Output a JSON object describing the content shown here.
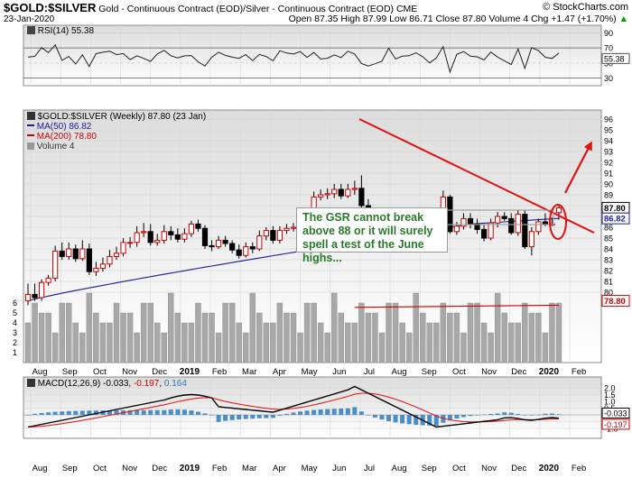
{
  "header": {
    "symbol": "$GOLD:$SILVER",
    "description": "Gold - Continuous Contract (EOD)/Silver - Continuous Contract (EOD) CME",
    "watermark": "© StockCharts.com",
    "date": "23-Jan-2020",
    "quote": "Open 87.35  High 87.99  Low 86.71  Close 87.80  Volume 4  Chg +1.47 (+1.70%)",
    "quote_arrow": "▲"
  },
  "rsi_panel": {
    "label": "RSI(14) 55.38",
    "ticks": [
      "90",
      "70",
      "50",
      "30"
    ],
    "value_tag": "55.38"
  },
  "price_panel": {
    "legend_title": "$GOLD:$SILVER (Weekly) 87.80 (23 Jan)",
    "legend_ma50": "MA(50) 86.82",
    "legend_ma200": "MA(200) 78.80",
    "legend_volume": "Volume 4",
    "ticks": [
      "96",
      "95",
      "94",
      "93",
      "92",
      "91",
      "90",
      "89",
      "88",
      "87",
      "86",
      "85",
      "84",
      "83",
      "82",
      "81",
      "80"
    ],
    "volume_ticks": [
      "6",
      "5",
      "4",
      "3",
      "2",
      "1"
    ],
    "tag_close": "87.80",
    "tag_ma50": "86.82",
    "tag_ma200": "78.80",
    "annotation": "The GSR cannot break above 88 or it will surely spell a test of the June highs..."
  },
  "macd_panel": {
    "label_name": "MACD(12,26,9)",
    "label_macd": "-0.033",
    "label_signal": "-0.197",
    "label_hist": "0.164",
    "ticks": [
      "2.0",
      "1.5",
      "1.0",
      "0.5",
      "0.0",
      "-0.5",
      "-1.0"
    ],
    "tag_macd": "-0.033",
    "tag_signal": "-0.197"
  },
  "x_axis": {
    "labels": [
      "Aug",
      "Sep",
      "Oct",
      "Nov",
      "Dec",
      "2019",
      "Feb",
      "Mar",
      "Apr",
      "May",
      "Jun",
      "Jul",
      "Aug",
      "Sep",
      "Oct",
      "Nov",
      "Dec",
      "2020",
      "Feb"
    ]
  },
  "colors": {
    "ma50": "#1a1a9a",
    "ma200": "#cc0000",
    "trendline": "#e01010",
    "panel_top": "#dcdcdc",
    "panel_bottom": "#ffffff",
    "volume_bar": "#9a9a9a",
    "macd_hist": "#4a8ec8"
  },
  "chart_data": {
    "type": "candlestick",
    "title": "$GOLD:$SILVER (Weekly) 87.80 (23 Jan)",
    "ylim": [
      79,
      97
    ],
    "weeks": [
      "2018-07-27",
      "2018-08-03",
      "2018-08-10",
      "2018-08-17",
      "2018-08-24",
      "2018-08-31",
      "2018-09-07",
      "2018-09-14",
      "2018-09-21",
      "2018-09-28",
      "2018-10-05",
      "2018-10-12",
      "2018-10-19",
      "2018-10-26",
      "2018-11-02",
      "2018-11-09",
      "2018-11-16",
      "2018-11-23",
      "2018-11-30",
      "2018-12-07",
      "2018-12-14",
      "2018-12-21",
      "2018-12-28",
      "2019-01-04",
      "2019-01-11",
      "2019-01-18",
      "2019-01-25",
      "2019-02-01",
      "2019-02-08",
      "2019-02-15",
      "2019-02-22",
      "2019-03-01",
      "2019-03-08",
      "2019-03-15",
      "2019-03-22",
      "2019-03-29",
      "2019-04-05",
      "2019-04-12",
      "2019-04-19",
      "2019-04-26",
      "2019-05-03",
      "2019-05-10",
      "2019-05-17",
      "2019-05-24",
      "2019-05-31",
      "2019-06-07",
      "2019-06-14",
      "2019-06-21",
      "2019-06-28",
      "2019-07-05",
      "2019-07-12",
      "2019-07-19",
      "2019-07-26",
      "2019-08-02",
      "2019-08-09",
      "2019-08-16",
      "2019-08-23",
      "2019-08-30",
      "2019-09-06",
      "2019-09-13",
      "2019-09-20",
      "2019-09-27",
      "2019-10-04",
      "2019-10-11",
      "2019-10-18",
      "2019-10-25",
      "2019-11-01",
      "2019-11-08",
      "2019-11-15",
      "2019-11-22",
      "2019-11-29",
      "2019-12-06",
      "2019-12-13",
      "2019-12-20",
      "2019-12-27",
      "2020-01-03",
      "2020-01-10",
      "2020-01-17",
      "2020-01-23"
    ],
    "open": [
      79.2,
      79.8,
      79.5,
      80.9,
      81.3,
      83.8,
      83.3,
      84.0,
      83.1,
      84.0,
      81.9,
      82.2,
      82.6,
      83.3,
      83.6,
      84.6,
      84.6,
      85.5,
      85.6,
      84.6,
      84.8,
      85.6,
      85.3,
      84.9,
      85.4,
      86.3,
      85.9,
      84.3,
      84.2,
      84.8,
      84.5,
      83.9,
      83.4,
      84.2,
      84.0,
      85.2,
      85.7,
      84.8,
      85.7,
      85.9,
      86.0,
      87.0,
      87.2,
      88.8,
      89.0,
      89.1,
      89.5,
      88.9,
      89.5,
      89.6,
      88.0,
      86.3,
      85.4,
      85.1,
      87.4,
      86.9,
      86.6,
      86.2,
      86.6,
      86.5,
      85.5,
      85.9,
      88.8,
      85.6,
      86.1,
      86.8,
      86.3,
      85.8,
      85.0,
      86.4,
      87.0,
      86.8,
      85.5,
      87.2,
      84.2,
      85.6,
      86.5,
      86.3,
      87.35
    ],
    "close": [
      79.8,
      79.5,
      80.9,
      81.3,
      83.8,
      83.3,
      84.0,
      83.1,
      84.0,
      81.9,
      82.2,
      82.6,
      83.3,
      83.6,
      84.6,
      84.6,
      85.5,
      85.6,
      84.6,
      84.8,
      85.6,
      85.3,
      84.9,
      85.4,
      86.3,
      85.9,
      84.3,
      84.2,
      84.8,
      84.5,
      83.9,
      83.4,
      84.2,
      84.0,
      85.2,
      85.7,
      84.8,
      85.7,
      85.9,
      86.0,
      87.0,
      87.2,
      88.8,
      89.0,
      89.1,
      89.5,
      88.9,
      89.5,
      89.6,
      88.0,
      86.3,
      85.4,
      85.1,
      87.4,
      86.9,
      86.6,
      86.2,
      86.6,
      86.5,
      85.5,
      85.9,
      88.8,
      85.6,
      86.1,
      86.8,
      86.3,
      85.8,
      85.0,
      86.4,
      87.0,
      86.8,
      85.5,
      87.2,
      84.2,
      85.6,
      86.5,
      86.3,
      86.3,
      87.8
    ],
    "high": [
      80.8,
      80.8,
      81.2,
      81.6,
      84.3,
      84.6,
      84.6,
      84.4,
      84.8,
      84.5,
      82.8,
      83.2,
      83.9,
      84.2,
      85.0,
      85.1,
      86.1,
      86.4,
      86.3,
      85.4,
      86.2,
      86.1,
      85.9,
      85.9,
      86.6,
      86.7,
      86.2,
      84.8,
      85.2,
      85.2,
      84.8,
      84.4,
      84.6,
      84.6,
      85.7,
      86.0,
      86.1,
      86.1,
      86.3,
      86.4,
      87.4,
      87.6,
      89.3,
      89.5,
      89.6,
      90.0,
      90.0,
      90.0,
      90.3,
      90.8,
      88.6,
      86.9,
      85.9,
      87.8,
      87.8,
      87.2,
      87.0,
      87.1,
      87.0,
      86.9,
      86.6,
      89.4,
      89.0,
      86.5,
      87.3,
      87.3,
      86.8,
      86.2,
      86.8,
      87.4,
      87.4,
      87.3,
      87.6,
      87.6,
      86.0,
      86.8,
      87.3,
      86.9,
      87.99
    ],
    "low": [
      78.8,
      79.2,
      79.2,
      80.6,
      81.0,
      83.0,
      83.0,
      82.8,
      82.9,
      81.6,
      81.5,
      81.9,
      82.3,
      83.0,
      83.3,
      84.1,
      84.2,
      85.1,
      84.3,
      84.3,
      84.5,
      84.8,
      84.6,
      84.6,
      85.1,
      85.6,
      84.0,
      83.8,
      84.0,
      84.2,
      83.6,
      83.1,
      83.2,
      83.6,
      83.8,
      84.8,
      84.5,
      84.5,
      85.4,
      85.6,
      85.7,
      86.7,
      86.9,
      88.5,
      88.6,
      88.7,
      88.6,
      88.7,
      89.0,
      87.7,
      86.1,
      85.0,
      84.9,
      85.0,
      86.6,
      86.4,
      86.0,
      85.8,
      85.2,
      85.3,
      85.3,
      85.7,
      85.4,
      85.3,
      85.8,
      85.9,
      85.4,
      84.7,
      84.8,
      86.0,
      86.6,
      85.3,
      85.2,
      84.0,
      83.4,
      85.3,
      86.1,
      86.1,
      86.71
    ]
  }
}
